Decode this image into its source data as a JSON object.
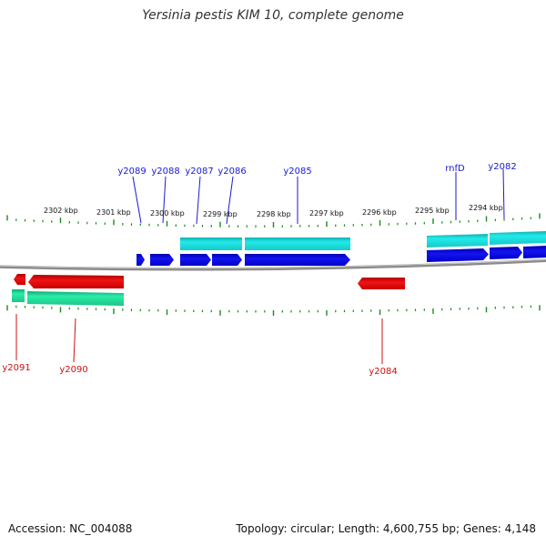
{
  "title": "Yersinia pestis KIM 10, complete genome",
  "ruler_labels": [
    "2302 kbp",
    "2301 kbp",
    "2300 kbp",
    "2299 kbp",
    "2298 kbp",
    "2297 kbp",
    "2296 kbp",
    "2295 kbp",
    "2294 kbp"
  ],
  "genes_forward": [
    "y2089",
    "y2088",
    "y2087",
    "y2086",
    "y2085",
    "rnfD",
    "y2082"
  ],
  "genes_reverse": [
    "y2091",
    "y2090",
    "y2084"
  ],
  "colors": {
    "forward_gene": "#0000e0",
    "forward_label": "#1a1ad0",
    "forward_feature": "#1ee6e6",
    "reverse_gene": "#e60000",
    "reverse_label": "#cc1111",
    "reverse_feature": "#20e6a0",
    "ruler_tick": "#1a8c1a",
    "backbone": "#888888"
  },
  "footer": {
    "accession": "Accession: NC_004088",
    "summary": "Topology: circular; Length: 4,600,755 bp; Genes: 4,148"
  }
}
